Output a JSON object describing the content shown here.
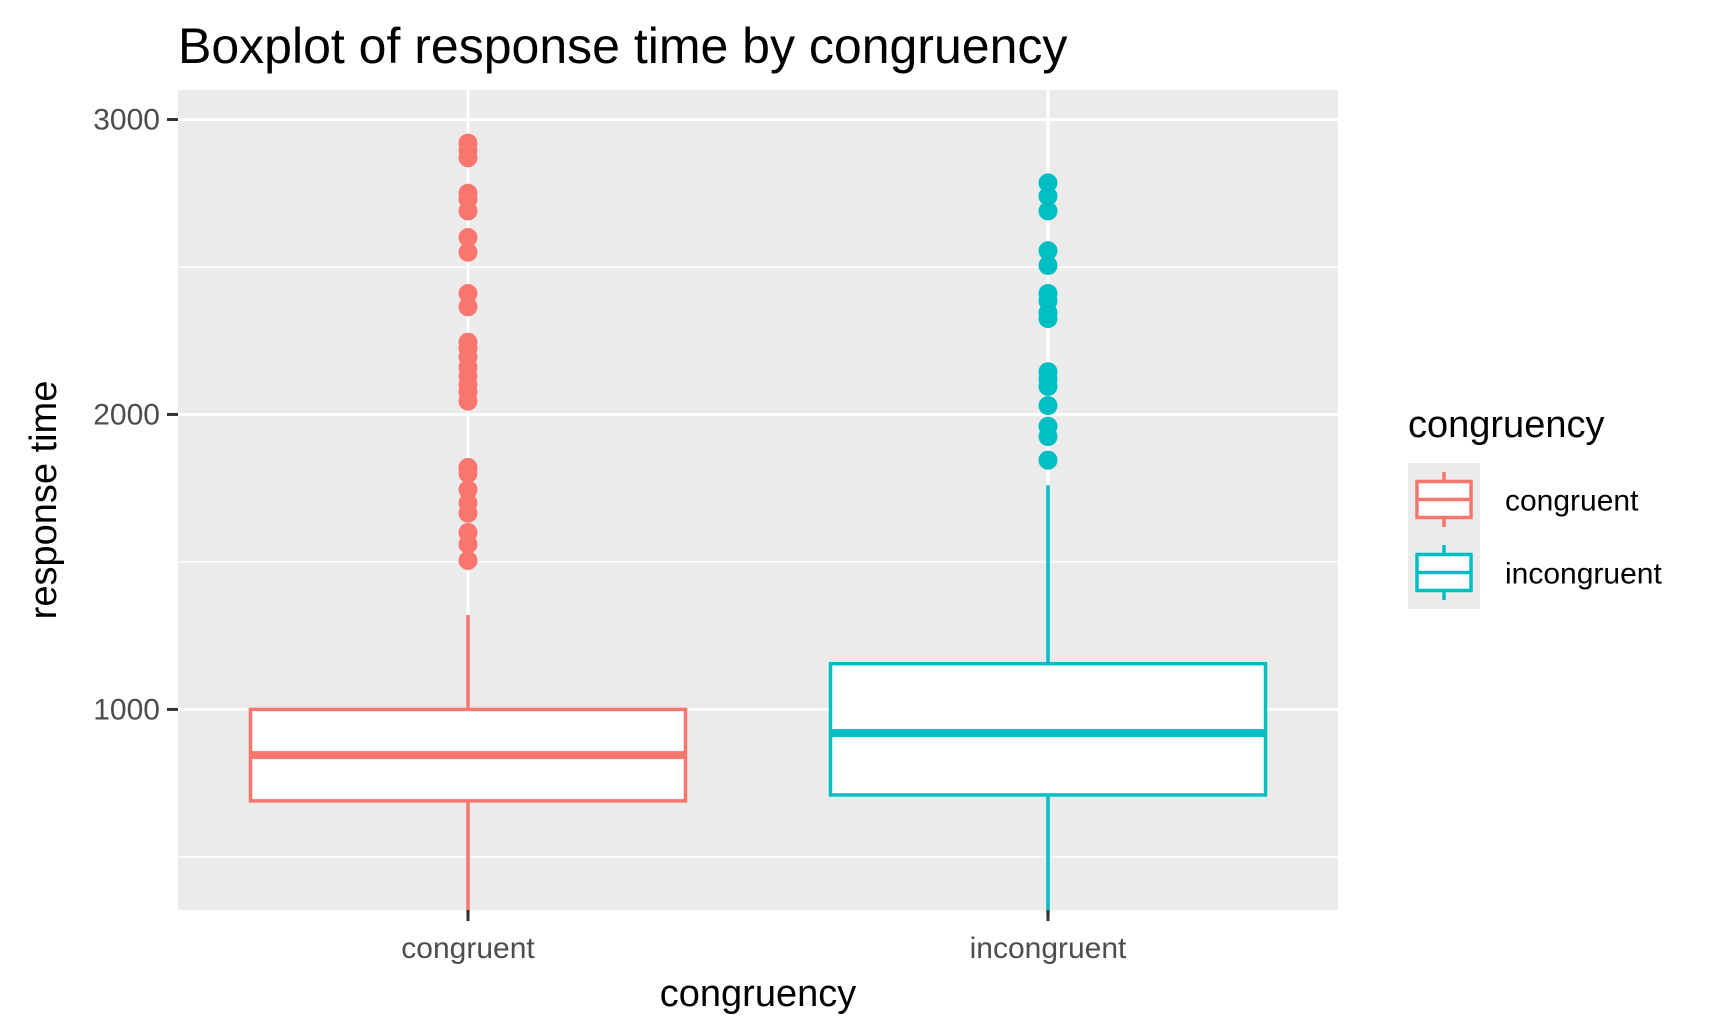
{
  "chart_data": {
    "type": "boxplot",
    "title": "Boxplot of response time by congruency",
    "xlabel": "congruency",
    "ylabel": "response time",
    "ylim": [
      320,
      3100
    ],
    "y_ticks": [
      1000,
      2000,
      3000
    ],
    "y_tick_labels": [
      "1000",
      "2000",
      "3000"
    ],
    "y_minor_ticks": [
      500,
      1500,
      2500
    ],
    "grid": true,
    "legend": {
      "title": "congruency",
      "placement": "right",
      "entries": [
        "congruent",
        "incongruent"
      ]
    },
    "categories": [
      "congruent",
      "incongruent"
    ],
    "series": [
      {
        "name": "congruent",
        "color": "#F8766D",
        "whisker_low": 310,
        "q1": 690,
        "median": 845,
        "q3": 1000,
        "whisker_high": 1320,
        "outliers": [
          1505,
          1560,
          1600,
          1665,
          1700,
          1745,
          1800,
          1820,
          2045,
          2075,
          2100,
          2130,
          2160,
          2195,
          2225,
          2245,
          2365,
          2410,
          2550,
          2600,
          2690,
          2730,
          2750,
          2870,
          2895,
          2920
        ]
      },
      {
        "name": "incongruent",
        "color": "#00BFC4",
        "whisker_low": 305,
        "q1": 710,
        "median": 920,
        "q3": 1155,
        "whisker_high": 1760,
        "outliers": [
          1845,
          1925,
          1960,
          2030,
          2095,
          2120,
          2145,
          2325,
          2345,
          2385,
          2410,
          2505,
          2555,
          2690,
          2740,
          2785
        ]
      }
    ]
  }
}
